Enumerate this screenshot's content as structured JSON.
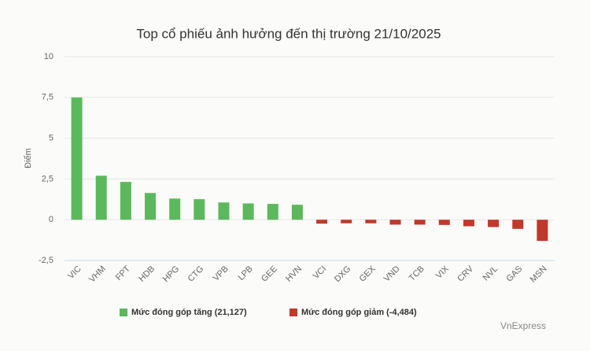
{
  "chart_data": {
    "type": "bar",
    "title": "Top cổ phiếu ảnh hưởng đến thị trường 21/10/2025",
    "y_label": "Điểm",
    "source": "VnExpress",
    "categories": [
      "VIC",
      "VHM",
      "FPT",
      "HDB",
      "HPG",
      "CTG",
      "VPB",
      "LPB",
      "GEE",
      "HVN",
      "VCI",
      "DXG",
      "GEX",
      "VND",
      "TCB",
      "VIX",
      "CRV",
      "NVL",
      "GAS",
      "MSN"
    ],
    "series": [
      {
        "name": "Mức đóng góp tăng (21,127)",
        "color": "#5cb85c",
        "values": [
          7.5,
          2.7,
          2.32,
          1.64,
          1.3,
          1.26,
          1.06,
          1.0,
          0.97,
          0.92,
          null,
          null,
          null,
          null,
          null,
          null,
          null,
          null,
          null,
          null
        ]
      },
      {
        "name": "Mức đóng góp giảm (-4,484)",
        "color": "#c0392b",
        "values": [
          null,
          null,
          null,
          null,
          null,
          null,
          null,
          null,
          null,
          null,
          -0.24,
          -0.22,
          -0.22,
          -0.3,
          -0.3,
          -0.32,
          -0.4,
          -0.45,
          -0.56,
          -1.3
        ]
      }
    ],
    "ylim": [
      -2.5,
      10
    ],
    "yticks": [
      {
        "value": -2.5,
        "label": "-2,5"
      },
      0,
      {
        "value": 2.5,
        "label": "2,5"
      },
      5,
      {
        "value": 7.5,
        "label": "7,5"
      },
      10
    ],
    "grid": true,
    "legend": "bottom"
  }
}
